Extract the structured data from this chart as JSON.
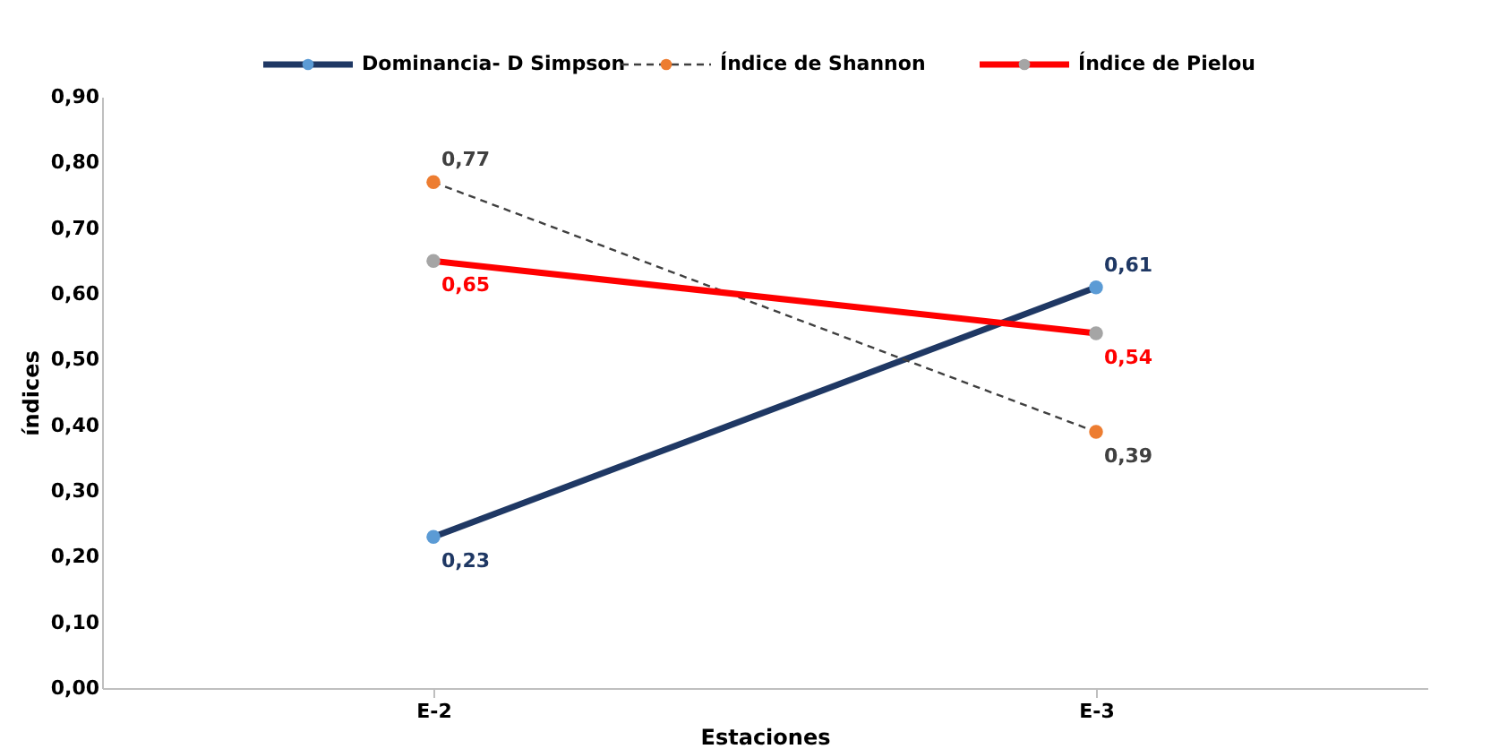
{
  "chart_data": {
    "type": "line",
    "xlabel": "Estaciones",
    "ylabel": "índices",
    "categories": [
      "E-2",
      "E-3"
    ],
    "series": [
      {
        "name": "Dominancia- D Simpson",
        "color": "#1f3864",
        "colors": [
          "#5b9bd5",
          "#5b9bd5"
        ],
        "values": [
          0.23,
          0.61
        ],
        "value_labels": [
          "0,23",
          "0,61"
        ],
        "line_style": "solid"
      },
      {
        "name": "Índice de Shannon",
        "color": "#404040",
        "colors": [
          "#ed7d31",
          "#ed7d31"
        ],
        "values": [
          0.77,
          0.39
        ],
        "value_labels": [
          "0,77",
          "0,39"
        ],
        "line_style": "dashed"
      },
      {
        "name": "Índice de Pielou",
        "color": "#ff0000",
        "colors": [
          "#a5a5a5",
          "#a5a5a5"
        ],
        "values": [
          0.65,
          0.54
        ],
        "value_labels": [
          "0,65",
          "0,54"
        ],
        "line_style": "solid"
      }
    ],
    "ylim": [
      0,
      0.9
    ],
    "yticks": [
      {
        "value": 0,
        "label": "0,00"
      },
      {
        "value": 0.1,
        "label": "0,10"
      },
      {
        "value": 0.2,
        "label": "0,20"
      },
      {
        "value": 0.3,
        "label": "0,30"
      },
      {
        "value": 0.4,
        "label": "0,40"
      },
      {
        "value": 0.5,
        "label": "0,50"
      },
      {
        "value": 0.6,
        "label": "0,60"
      },
      {
        "value": 0.7,
        "label": "0,70"
      },
      {
        "value": 0.8,
        "label": "0,80"
      },
      {
        "value": 0.9,
        "label": "0,90"
      }
    ],
    "grid": false,
    "legend": "top",
    "marker": "circle"
  }
}
